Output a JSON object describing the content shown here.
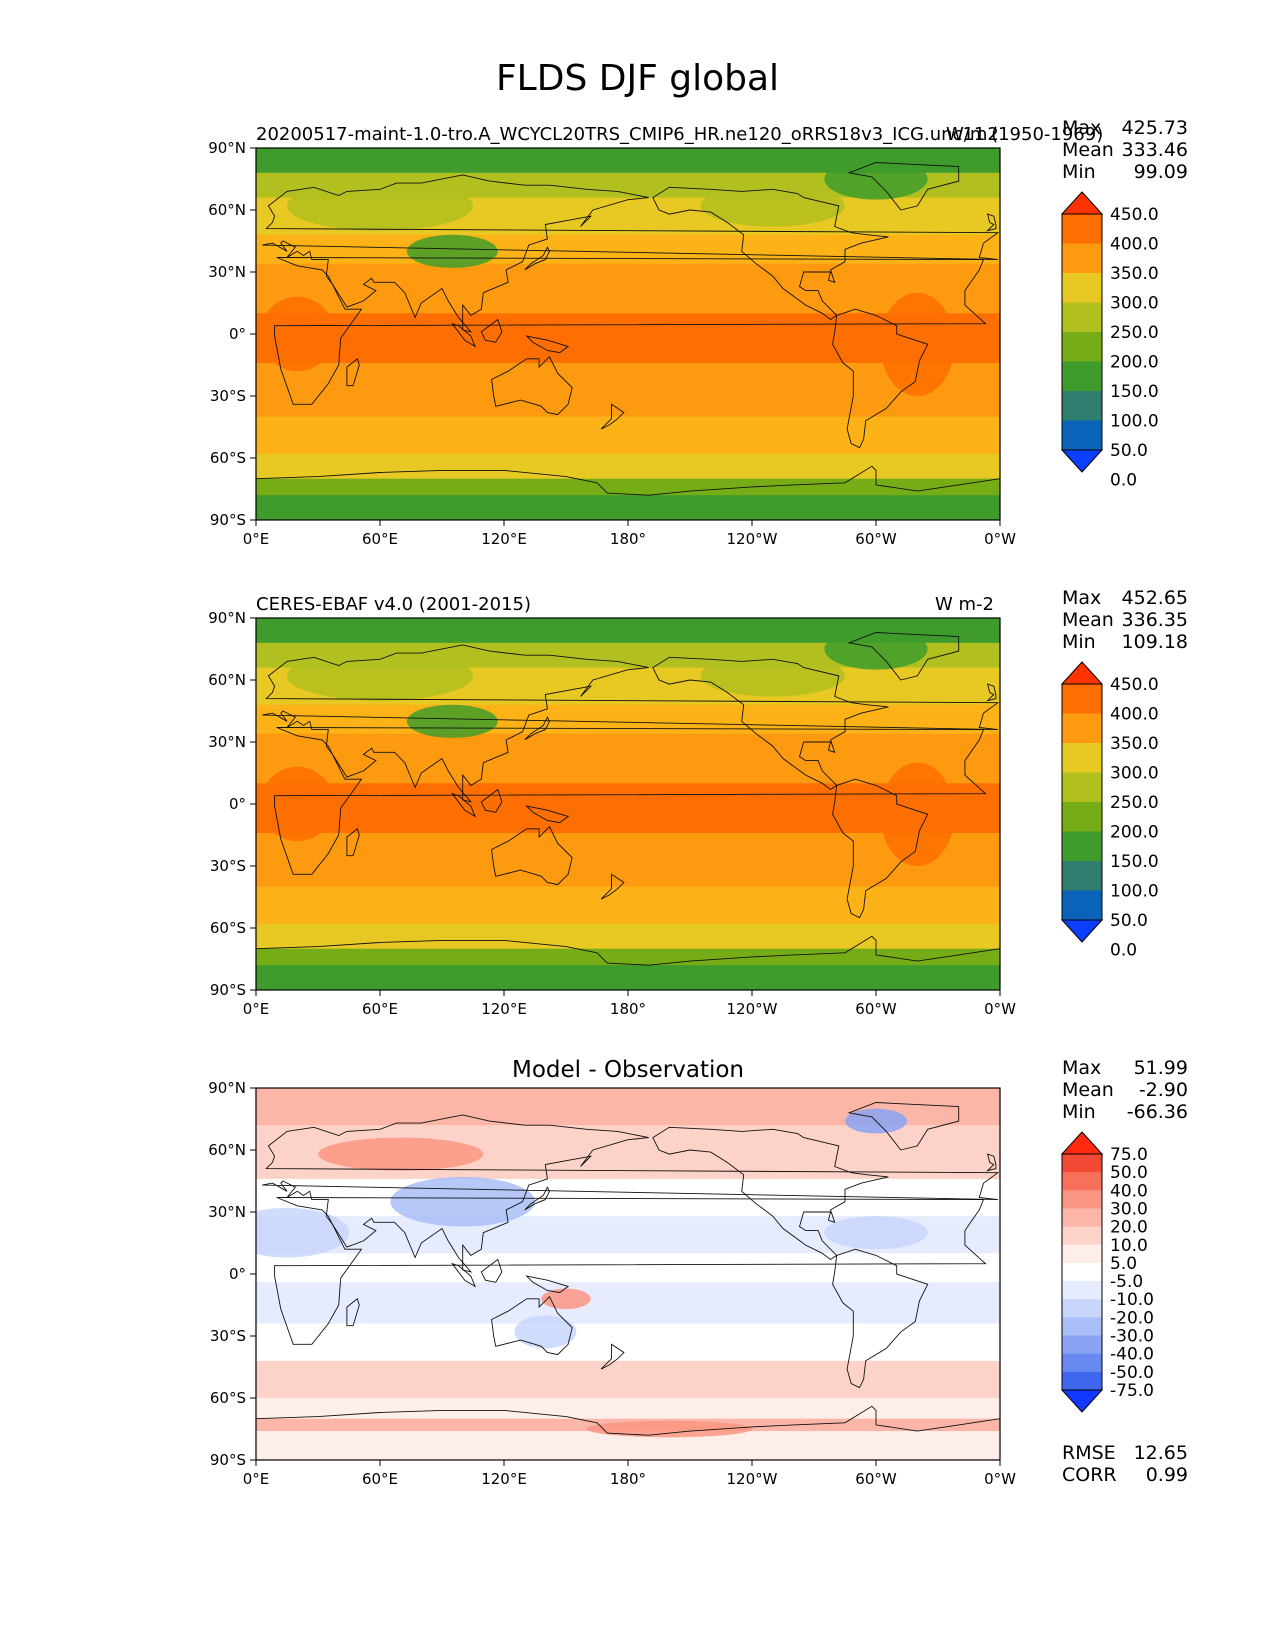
{
  "title": "FLDS DJF global",
  "panels": [
    {
      "left_title": "20200517-maint-1.0-tro.A_WCYCL20TRS_CMIP6_HR.ne120_oRRS18v3_ICG.unc11 (1950-1969)",
      "right_title": "W/m2",
      "center_title": "",
      "stats": [
        {
          "label": "Max",
          "value": "425.73"
        },
        {
          "label": "Mean",
          "value": "333.46"
        },
        {
          "label": "Min",
          "value": "99.09"
        }
      ],
      "colorbar": {
        "labels": [
          "450.0",
          "400.0",
          "350.0",
          "300.0",
          "250.0",
          "200.0",
          "150.0",
          "100.0",
          "50.0",
          "0.0"
        ],
        "colors": [
          "#ff3300",
          "#fe6e00",
          "#fd9a0f",
          "#e8c822",
          "#b1c01f",
          "#76ad17",
          "#3f9c2c",
          "#2f7e70",
          "#0b62b9",
          "#0a3fff"
        ]
      }
    },
    {
      "left_title": "CERES-EBAF v4.0 (2001-2015)",
      "right_title": "W m-2",
      "center_title": "",
      "stats": [
        {
          "label": "Max",
          "value": "452.65"
        },
        {
          "label": "Mean",
          "value": "336.35"
        },
        {
          "label": "Min",
          "value": "109.18"
        }
      ],
      "colorbar": {
        "labels": [
          "450.0",
          "400.0",
          "350.0",
          "300.0",
          "250.0",
          "200.0",
          "150.0",
          "100.0",
          "50.0",
          "0.0"
        ],
        "colors": [
          "#ff3300",
          "#fe6e00",
          "#fd9a0f",
          "#e8c822",
          "#b1c01f",
          "#76ad17",
          "#3f9c2c",
          "#2f7e70",
          "#0b62b9",
          "#0a3fff"
        ]
      }
    },
    {
      "left_title": "",
      "right_title": "",
      "center_title": "Model - Observation",
      "stats": [
        {
          "label": "Max",
          "value": "51.99"
        },
        {
          "label": "Mean",
          "value": "-2.90"
        },
        {
          "label": "Min",
          "value": "-66.36"
        }
      ],
      "extra_stats": [
        {
          "label": "RMSE",
          "value": "12.65"
        },
        {
          "label": "CORR",
          "value": "0.99"
        }
      ],
      "colorbar": {
        "labels": [
          "75.0",
          "50.0",
          "40.0",
          "30.0",
          "20.0",
          "10.0",
          "5.0",
          "-5.0",
          "-10.0",
          "-20.0",
          "-30.0",
          "-40.0",
          "-50.0",
          "-75.0"
        ],
        "colors": [
          "#ff2a10",
          "#f24a35",
          "#f7705a",
          "#fb9583",
          "#fcb6a8",
          "#fdd3c9",
          "#feeeea",
          "#ffffff",
          "#e6ecfd",
          "#c8d6fb",
          "#a9bdf7",
          "#8aa3f3",
          "#6789f0",
          "#3f67ee",
          "#1239ff"
        ]
      }
    }
  ],
  "axes": {
    "lat_ticks": [
      "90°N",
      "60°N",
      "30°N",
      "0°",
      "30°S",
      "60°S",
      "90°S"
    ],
    "lon_ticks": [
      "0°E",
      "60°E",
      "120°E",
      "180°",
      "120°W",
      "60°W",
      "0°W"
    ]
  },
  "chart_data": [
    {
      "type": "heatmap",
      "title": "20200517-maint-1.0-tro.A_WCYCL20TRS_CMIP6_HR.ne120_oRRS18v3_ICG.unc11 (1950-1969)",
      "units": "W/m2",
      "xlim": [
        0,
        360
      ],
      "ylim": [
        -90,
        90
      ],
      "summary": {
        "max": 425.73,
        "mean": 333.46,
        "min": 99.09
      },
      "levels": [
        0,
        50,
        100,
        150,
        200,
        250,
        300,
        350,
        400,
        450
      ],
      "zonal_profile": {
        "lat": [
          90,
          75,
          60,
          45,
          30,
          15,
          0,
          -15,
          -30,
          -45,
          -60,
          -72,
          -80,
          -90
        ],
        "value": [
          215,
          240,
          275,
          300,
          340,
          385,
          405,
          390,
          360,
          330,
          300,
          220,
          150,
          140
        ]
      }
    },
    {
      "type": "heatmap",
      "title": "CERES-EBAF v4.0 (2001-2015)",
      "units": "W m-2",
      "xlim": [
        0,
        360
      ],
      "ylim": [
        -90,
        90
      ],
      "summary": {
        "max": 452.65,
        "mean": 336.35,
        "min": 109.18
      },
      "levels": [
        0,
        50,
        100,
        150,
        200,
        250,
        300,
        350,
        400,
        450
      ],
      "zonal_profile": {
        "lat": [
          90,
          75,
          60,
          45,
          30,
          15,
          0,
          -15,
          -30,
          -45,
          -60,
          -72,
          -80,
          -90
        ],
        "value": [
          200,
          235,
          270,
          300,
          345,
          390,
          410,
          395,
          365,
          335,
          300,
          220,
          150,
          140
        ]
      }
    },
    {
      "type": "heatmap",
      "title": "Model - Observation",
      "xlim": [
        0,
        360
      ],
      "ylim": [
        -90,
        90
      ],
      "summary": {
        "max": 51.99,
        "mean": -2.9,
        "min": -66.36,
        "rmse": 12.65,
        "corr": 0.99
      },
      "levels": [
        -75,
        -50,
        -40,
        -30,
        -20,
        -10,
        -5,
        5,
        10,
        20,
        30,
        40,
        50,
        75
      ],
      "zonal_profile": {
        "lat": [
          90,
          75,
          60,
          45,
          30,
          15,
          0,
          -15,
          -30,
          -45,
          -60,
          -72,
          -80,
          -90
        ],
        "value": [
          12,
          18,
          15,
          5,
          -15,
          -10,
          -3,
          -8,
          -5,
          2,
          10,
          5,
          5,
          2
        ]
      }
    }
  ]
}
